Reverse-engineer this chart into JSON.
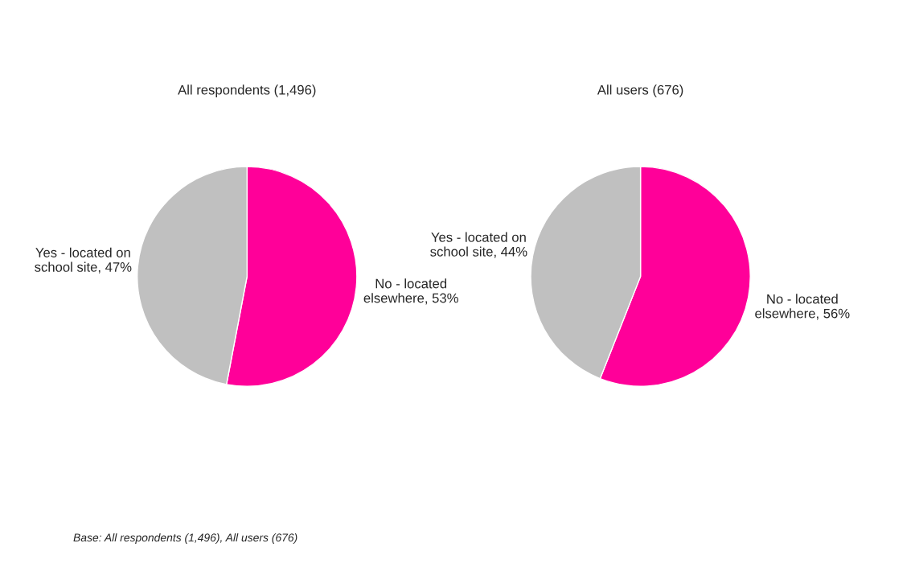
{
  "chart_data": [
    {
      "type": "pie",
      "title": "All respondents (1,496)",
      "categories": [
        "No - located\nelsewhere",
        "Yes - located on\nschool site"
      ],
      "values": [
        53,
        47
      ],
      "value_labels": [
        "53%",
        "47%"
      ],
      "colors": [
        "#ff0099",
        "#c0c0c0"
      ],
      "annotations": [
        "Base: All respondents (1,496), All users (676)"
      ]
    },
    {
      "type": "pie",
      "title": "All users (676)",
      "categories": [
        "No - located\nelsewhere",
        "Yes - located on\nschool site"
      ],
      "values": [
        56,
        44
      ],
      "value_labels": [
        "56%",
        "44%"
      ],
      "colors": [
        "#ff0099",
        "#c0c0c0"
      ]
    }
  ]
}
